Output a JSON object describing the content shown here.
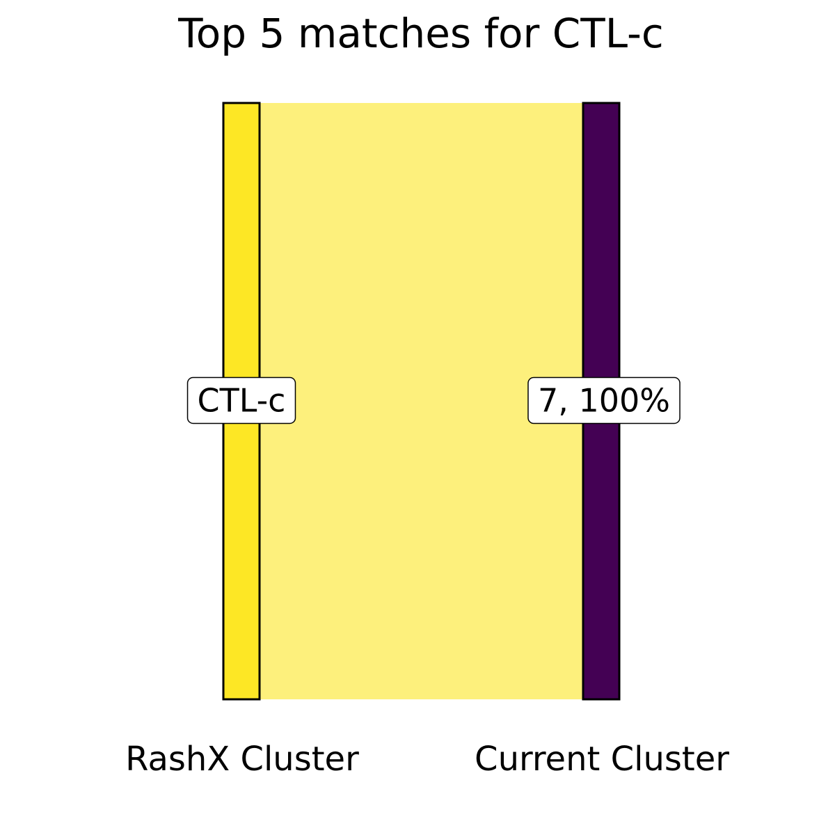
{
  "chart_data": {
    "type": "sankey",
    "title": "Top 5 matches for CTL-c",
    "axes": [
      {
        "label": "RashX Cluster",
        "side": "left"
      },
      {
        "label": "Current Cluster",
        "side": "right"
      }
    ],
    "left_nodes": [
      {
        "name": "CTL-c",
        "label": "CTL-c",
        "color": "#fde725"
      }
    ],
    "right_nodes": [
      {
        "name": "7",
        "label": "7, 100%",
        "color": "#440154"
      }
    ],
    "flows": [
      {
        "from": "CTL-c",
        "to": "7",
        "fraction": 1.0,
        "percent": 100,
        "color": "#fdf07c"
      }
    ]
  }
}
